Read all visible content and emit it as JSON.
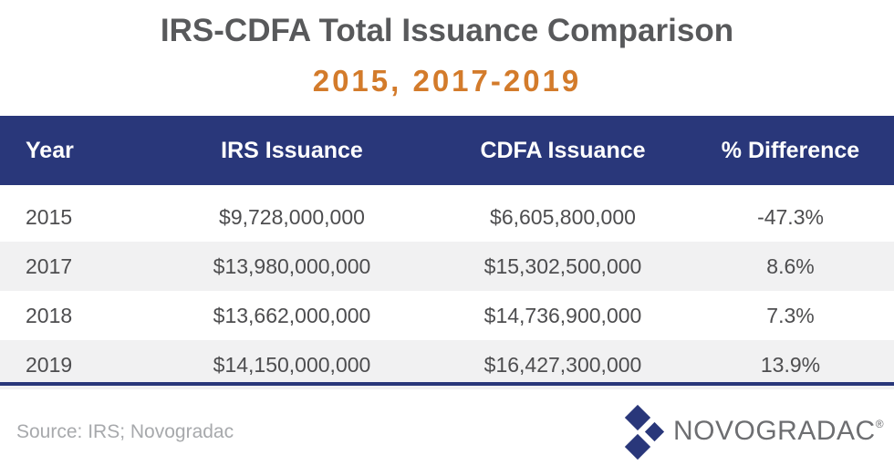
{
  "chart_data": {
    "type": "table",
    "title": "IRS-CDFA Total Issuance Comparison",
    "subtitle": "2015, 2017-2019",
    "columns": [
      "Year",
      "IRS Issuance",
      "CDFA Issuance",
      "% Difference"
    ],
    "rows": [
      [
        "2015",
        "$9,728,000,000",
        "$6,605,800,000",
        "-47.3%"
      ],
      [
        "2017",
        "$13,980,000,000",
        "$15,302,500,000",
        "8.6%"
      ],
      [
        "2018",
        "$13,662,000,000",
        "$14,736,900,000",
        "7.3%"
      ],
      [
        "2019",
        "$14,150,000,000",
        "$16,427,300,000",
        "13.9%"
      ]
    ]
  },
  "source": "Source: IRS; Novogradac",
  "logo": {
    "text": "NOVOGRADAC",
    "mark": "®"
  },
  "colors": {
    "header": "#29377a",
    "subtitle": "#d37b2b",
    "title": "#58595b",
    "stripe": "#f1f1f2"
  }
}
